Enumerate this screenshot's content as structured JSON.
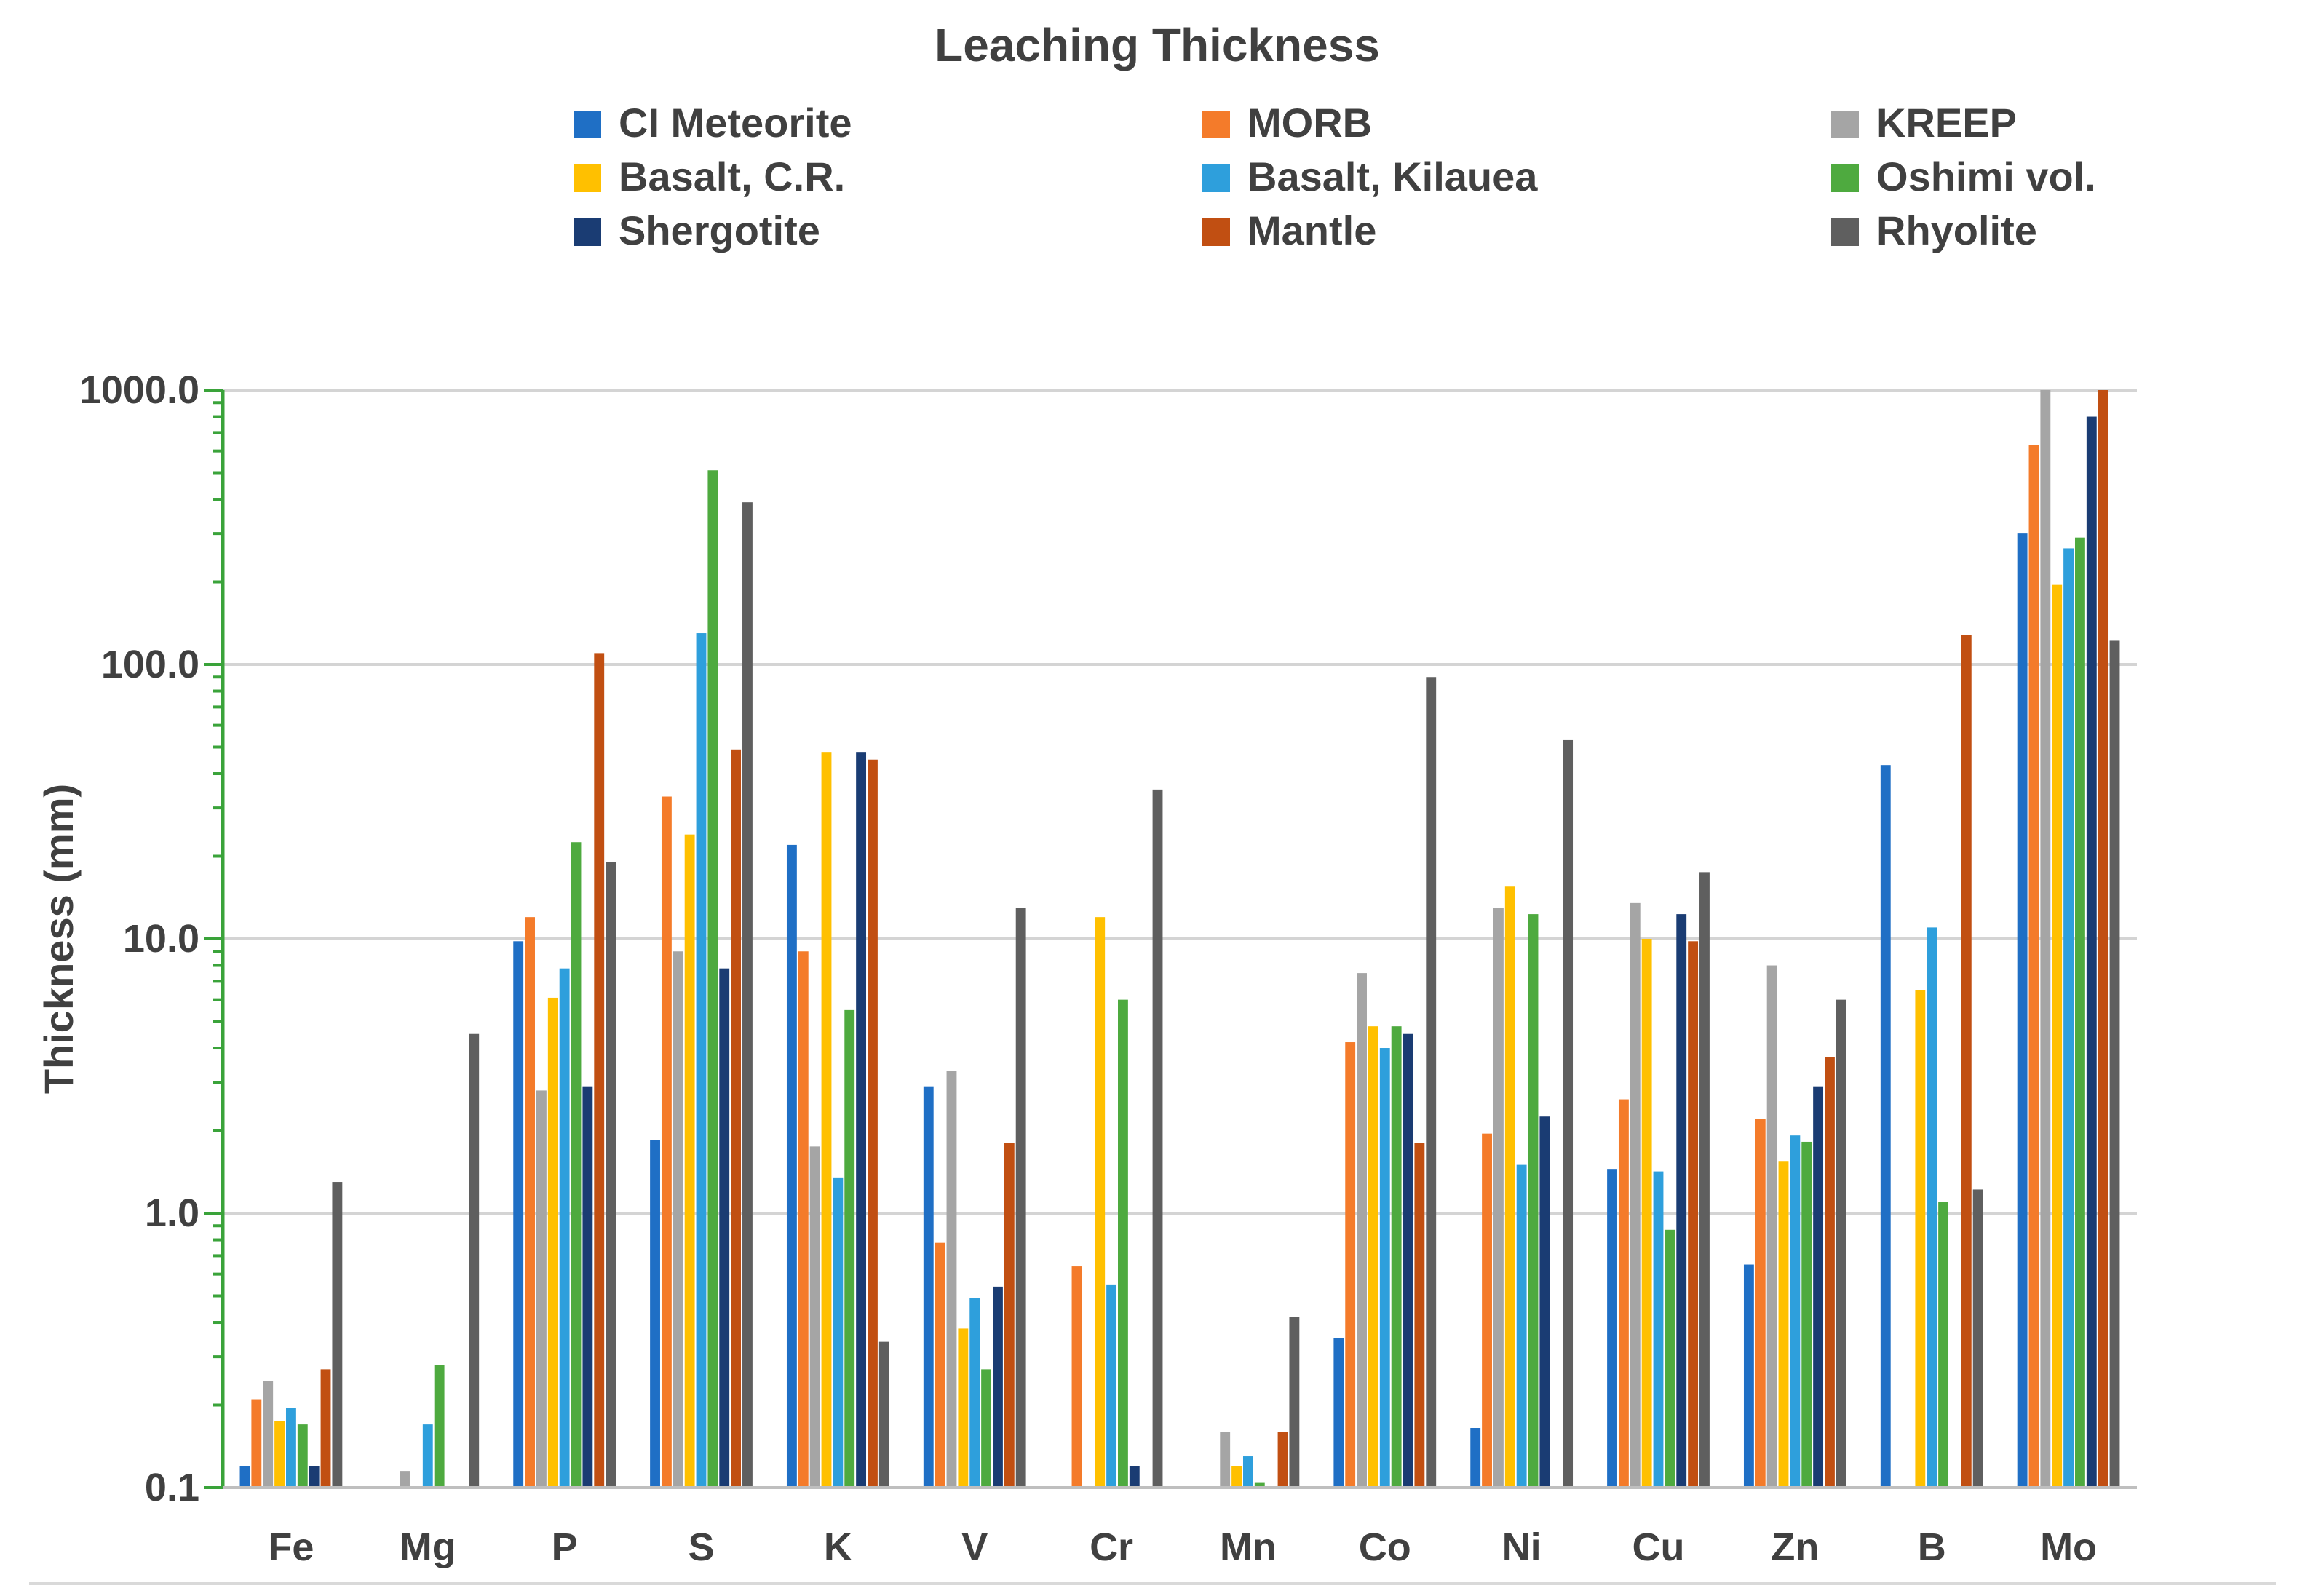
{
  "chart_data": {
    "type": "bar",
    "title": "Leaching Thickness",
    "xlabel": "",
    "ylabel": "Thickness (mm)",
    "yscale": "log",
    "ylim": [
      0.1,
      1000
    ],
    "grid": true,
    "legend_position": "top",
    "y_ticks": [
      {
        "value": 1000,
        "label": "1000.0"
      },
      {
        "value": 100,
        "label": "100.0"
      },
      {
        "value": 10,
        "label": "10.0"
      },
      {
        "value": 1,
        "label": "1.0"
      },
      {
        "value": 0.1,
        "label": "0.1"
      }
    ],
    "categories": [
      "Fe",
      "Mg",
      "P",
      "S",
      "K",
      "V",
      "Cr",
      "Mn",
      "Co",
      "Ni",
      "Cu",
      "Zn",
      "B",
      "Mo"
    ],
    "series": [
      {
        "name": "CI Meteorite",
        "color": "#1F6FC5",
        "values": [
          0.12,
          null,
          9.8,
          1.85,
          22.0,
          2.9,
          null,
          null,
          0.35,
          0.165,
          1.45,
          0.65,
          43.0,
          300
        ]
      },
      {
        "name": "MORB",
        "color": "#F47B2A",
        "values": [
          0.21,
          null,
          12.0,
          33.0,
          9.0,
          0.78,
          0.64,
          null,
          4.2,
          1.95,
          2.6,
          2.2,
          null,
          630
        ]
      },
      {
        "name": "KREEP",
        "color": "#A5A5A5",
        "values": [
          0.245,
          0.115,
          2.8,
          9.0,
          1.75,
          3.3,
          null,
          0.16,
          7.5,
          13.0,
          13.5,
          8.0,
          null,
          1000
        ]
      },
      {
        "name": "Basalt, C.R.",
        "color": "#FFC000",
        "values": [
          0.175,
          null,
          6.1,
          24.0,
          48.0,
          0.38,
          12.0,
          0.12,
          4.8,
          15.5,
          10.0,
          1.55,
          6.5,
          195
        ]
      },
      {
        "name": "Basalt, Kilauea",
        "color": "#2E9FDC",
        "values": [
          0.195,
          0.17,
          7.8,
          130,
          1.35,
          0.49,
          0.55,
          0.13,
          4.0,
          1.5,
          1.42,
          1.92,
          11.0,
          265
        ]
      },
      {
        "name": "Oshimi vol.",
        "color": "#4EAA3F",
        "values": [
          0.17,
          0.28,
          22.5,
          510,
          5.5,
          0.27,
          6.0,
          0.104,
          4.8,
          12.3,
          0.87,
          1.82,
          1.1,
          290
        ]
      },
      {
        "name": "Shergotite",
        "color": "#1A3C73",
        "values": [
          0.12,
          null,
          2.9,
          7.8,
          48.0,
          0.54,
          0.12,
          null,
          4.5,
          2.25,
          12.3,
          2.9,
          null,
          800
        ]
      },
      {
        "name": "Mantle",
        "color": "#C14F12",
        "values": [
          0.27,
          null,
          110,
          49.0,
          45.0,
          1.8,
          null,
          0.16,
          1.8,
          null,
          9.8,
          3.7,
          128,
          1000
        ]
      },
      {
        "name": "Rhyolite",
        "color": "#5F5F5F",
        "values": [
          1.3,
          4.5,
          19.0,
          390,
          0.34,
          13.0,
          35.0,
          0.42,
          90.0,
          53.0,
          17.5,
          6.0,
          1.22,
          122
        ]
      }
    ]
  }
}
